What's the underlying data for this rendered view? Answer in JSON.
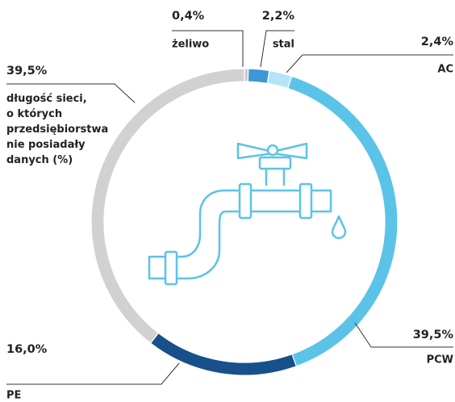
{
  "chart_data": {
    "type": "donut",
    "categories": [
      "żeliwo",
      "stal",
      "AC",
      "PCW",
      "PE",
      "długość sieci,\no których\nprzedsiębiorstwa\nnie posiadały\ndanych (%)"
    ],
    "values": [
      0.4,
      2.2,
      2.4,
      39.5,
      16.0,
      39.5
    ],
    "value_labels": [
      "0,4%",
      "2,2%",
      "2,4%",
      "39,5%",
      "16,0%",
      "39,5%"
    ],
    "colors": [
      "#c9c9c9",
      "#3f97d3",
      "#b5e4f6",
      "#5bc3e8",
      "#17508a",
      "#d1d1d1"
    ]
  }
}
